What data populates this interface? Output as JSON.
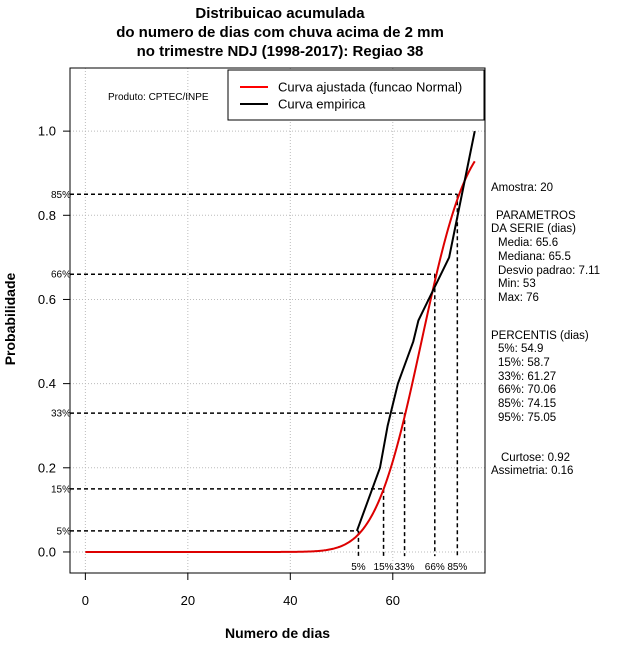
{
  "title_lines": [
    "Distribuicao acumulada",
    "do numero de dias com chuva acima de 2 mm",
    "no trimestre NDJ (1998-2017): Regiao 38"
  ],
  "producer": "Produto: CPTEC/INPE",
  "legend": [
    {
      "label": "Curva ajustada (funcao Normal)",
      "color": "#ff0000"
    },
    {
      "label": "Curva empirica",
      "color": "#000000"
    }
  ],
  "colors": {
    "fitted": "#dd0000",
    "empirical": "#000000",
    "grid": "#bbbbbb"
  },
  "stats": {
    "sample": "Amostra: 20",
    "params_header_1": "PARAMETROS",
    "params_header_2": "DA SERIE (dias)",
    "media": "Media: 65.6",
    "mediana": "Mediana: 65.5",
    "desvio": "Desvio padrao: 7.11",
    "min": "Min: 53",
    "max": "Max: 76",
    "percentis_header": "PERCENTIS (dias)",
    "p5": "5%: 54.9",
    "p15": "15%: 58.7",
    "p33": "33%: 61.27",
    "p66": "66%: 70.06",
    "p85": "85%: 74.15",
    "p95": "95%: 75.05",
    "curtose": "Curtose: 0.92",
    "assimetria": "Assimetria: 0.16"
  },
  "chart_data": {
    "type": "line",
    "title": "Distribuicao acumulada do numero de dias com chuva acima de 2 mm no trimestre NDJ (1998-2017): Regiao 38",
    "xlabel": "Numero de dias",
    "ylabel": "Probabilidade",
    "xlim": [
      -3,
      78
    ],
    "ylim": [
      -0.05,
      1.15
    ],
    "xticks": [
      0,
      20,
      40,
      60
    ],
    "yticks": [
      0.0,
      0.2,
      0.4,
      0.6,
      0.8,
      1.0
    ],
    "xtick_labels": [
      "0",
      "20",
      "40",
      "60"
    ],
    "ytick_labels": [
      "0.0",
      "0.2",
      "0.4",
      "0.6",
      "0.8",
      "1.0"
    ],
    "grid": true,
    "legend_position": "top-right",
    "fitted_normal": {
      "name": "Curva ajustada (funcao Normal)",
      "mean": 65.6,
      "sd": 7.11,
      "x_start": 0,
      "x_end": 76
    },
    "empirical": {
      "name": "Curva empirica",
      "x": [
        53,
        54.5,
        56,
        57.5,
        59,
        60,
        61,
        62.5,
        64,
        65,
        66,
        67,
        68,
        69,
        70,
        71,
        72,
        73,
        74,
        75,
        76
      ],
      "y": [
        0.05,
        0.1,
        0.15,
        0.2,
        0.3,
        0.35,
        0.4,
        0.45,
        0.5,
        0.55,
        0.575,
        0.6,
        0.625,
        0.65,
        0.675,
        0.7,
        0.76,
        0.82,
        0.88,
        0.94,
        1.0
      ]
    },
    "percentiles": [
      {
        "label": "5%",
        "p": 0.05,
        "x": 53.3
      },
      {
        "label": "15%",
        "p": 0.15,
        "x": 58.2
      },
      {
        "label": "33%",
        "p": 0.33,
        "x": 62.3
      },
      {
        "label": "66%",
        "p": 0.66,
        "x": 68.2
      },
      {
        "label": "85%",
        "p": 0.85,
        "x": 72.6
      }
    ]
  }
}
